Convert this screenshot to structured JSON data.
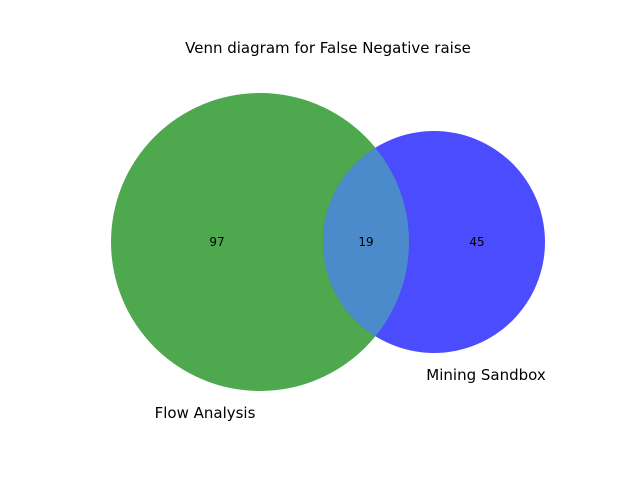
{
  "title": "Venn diagram for False Negative raise",
  "colors": {
    "left_only": "#4ea84e",
    "right_only": "#4c4cff",
    "overlap": "#4b8bcb",
    "background": "#ffffff",
    "text": "#000000"
  },
  "sets": [
    {
      "name": "Flow Analysis",
      "color": "#4ea84e"
    },
    {
      "name": "Mining Sandbox",
      "color": "#4c4cff"
    }
  ],
  "regions": {
    "flow_analysis_only": "97",
    "intersection": "19",
    "mining_sandbox_only": "45"
  }
}
